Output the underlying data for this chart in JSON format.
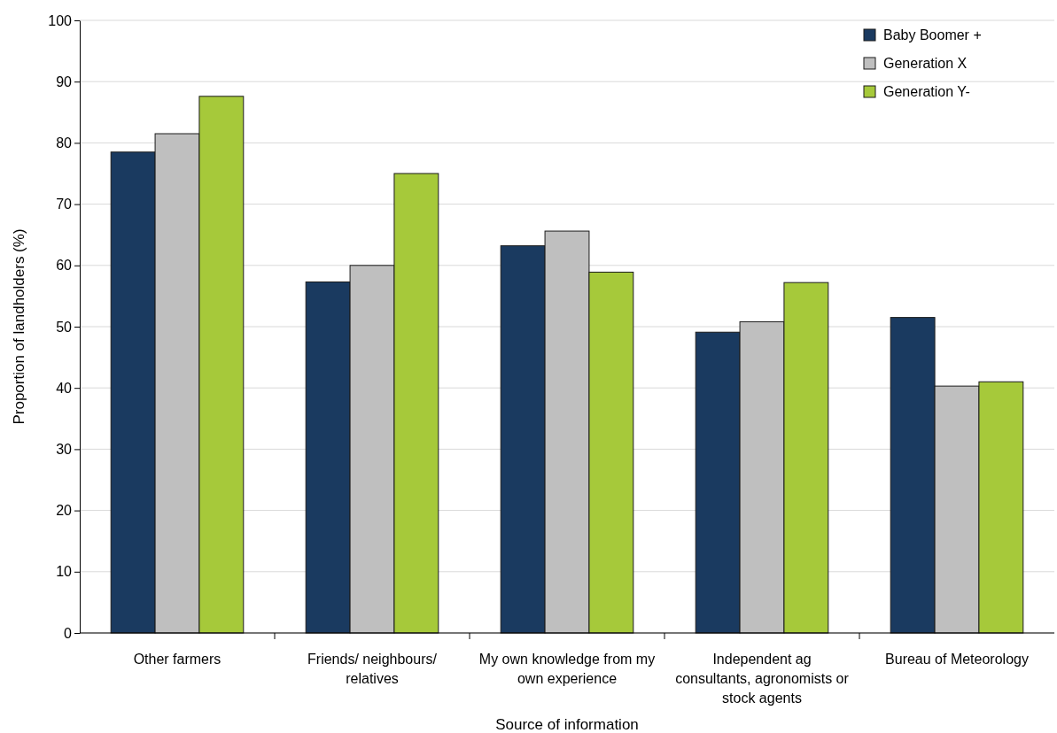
{
  "chart_data": {
    "type": "bar",
    "xlabel": "Source of information",
    "ylabel": "Proportion of landholders (%)",
    "categories": [
      "Other farmers",
      "Friends/ neighbours/ relatives",
      "My own knowledge from my own experience",
      "Independent ag consultants, agronomists or stock agents",
      "Bureau of Meteorology"
    ],
    "series": [
      {
        "name": "Baby Boomer +",
        "color": "#1a3a60",
        "values": [
          78.5,
          57.3,
          63.2,
          49.1,
          51.5
        ]
      },
      {
        "name": "Generation X",
        "color": "#bfbfbf",
        "values": [
          81.5,
          60.0,
          65.6,
          50.8,
          40.3
        ]
      },
      {
        "name": "Generation Y-",
        "color": "#a6c93a",
        "values": [
          87.6,
          75.0,
          58.9,
          57.2,
          41.0
        ]
      }
    ],
    "ylim": [
      0,
      100
    ],
    "yticks": [
      0,
      10,
      20,
      30,
      40,
      50,
      60,
      70,
      80,
      90,
      100
    ],
    "grid": "y",
    "legend": "top right"
  }
}
